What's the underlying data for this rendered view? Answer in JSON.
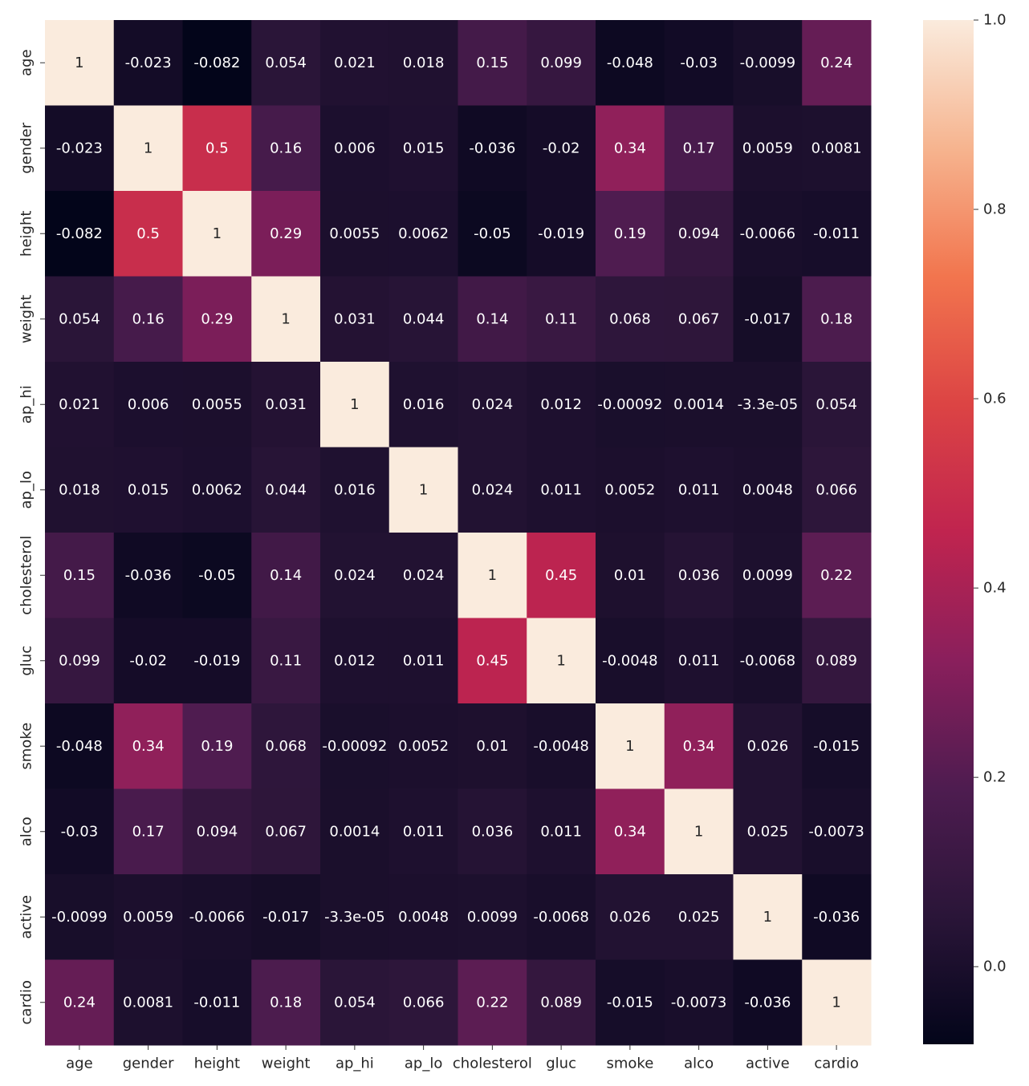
{
  "chart_data": {
    "type": "heatmap",
    "x_categories": [
      "age",
      "gender",
      "height",
      "weight",
      "ap_hi",
      "ap_lo",
      "cholesterol",
      "gluc",
      "smoke",
      "alco",
      "active",
      "cardio"
    ],
    "y_categories": [
      "age",
      "gender",
      "height",
      "weight",
      "ap_hi",
      "ap_lo",
      "cholesterol",
      "gluc",
      "smoke",
      "alco",
      "active",
      "cardio"
    ],
    "values": [
      [
        1,
        -0.023,
        -0.082,
        0.054,
        0.021,
        0.018,
        0.15,
        0.099,
        -0.048,
        -0.03,
        -0.0099,
        0.24
      ],
      [
        -0.023,
        1,
        0.5,
        0.16,
        0.006,
        0.015,
        -0.036,
        -0.02,
        0.34,
        0.17,
        0.0059,
        0.0081
      ],
      [
        -0.082,
        0.5,
        1,
        0.29,
        0.0055,
        0.0062,
        -0.05,
        -0.019,
        0.19,
        0.094,
        -0.0066,
        -0.011
      ],
      [
        0.054,
        0.16,
        0.29,
        1,
        0.031,
        0.044,
        0.14,
        0.11,
        0.068,
        0.067,
        -0.017,
        0.18
      ],
      [
        0.021,
        0.006,
        0.0055,
        0.031,
        1,
        0.016,
        0.024,
        0.012,
        -0.00092,
        0.0014,
        -3.3e-05,
        0.054
      ],
      [
        0.018,
        0.015,
        0.0062,
        0.044,
        0.016,
        1,
        0.024,
        0.011,
        0.0052,
        0.011,
        0.0048,
        0.066
      ],
      [
        0.15,
        -0.036,
        -0.05,
        0.14,
        0.024,
        0.024,
        1,
        0.45,
        0.01,
        0.036,
        0.0099,
        0.22
      ],
      [
        0.099,
        -0.02,
        -0.019,
        0.11,
        0.012,
        0.011,
        0.45,
        1,
        -0.0048,
        0.011,
        -0.0068,
        0.089
      ],
      [
        -0.048,
        0.34,
        0.19,
        0.068,
        -0.00092,
        0.0052,
        0.01,
        -0.0048,
        1,
        0.34,
        0.026,
        -0.015
      ],
      [
        -0.03,
        0.17,
        0.094,
        0.067,
        0.0014,
        0.011,
        0.036,
        0.011,
        0.34,
        1,
        0.025,
        -0.0073
      ],
      [
        -0.0099,
        0.0059,
        -0.0066,
        -0.017,
        -3.3e-05,
        0.0048,
        0.0099,
        -0.0068,
        0.026,
        0.025,
        1,
        -0.036
      ],
      [
        0.24,
        0.0081,
        -0.011,
        0.18,
        0.054,
        0.066,
        0.22,
        0.089,
        -0.015,
        -0.0073,
        -0.036,
        1
      ]
    ],
    "value_labels": [
      [
        null,
        null,
        null,
        null,
        null,
        null,
        null,
        null,
        null,
        null,
        null,
        null
      ],
      [
        null,
        null,
        null,
        null,
        null,
        null,
        null,
        null,
        null,
        null,
        null,
        null
      ],
      [
        null,
        null,
        null,
        null,
        null,
        null,
        null,
        null,
        null,
        null,
        null,
        null
      ],
      [
        null,
        null,
        null,
        null,
        null,
        null,
        null,
        null,
        null,
        null,
        null,
        null
      ],
      [
        null,
        null,
        null,
        null,
        null,
        null,
        null,
        null,
        null,
        null,
        "-3.3e-05",
        null
      ],
      [
        null,
        null,
        null,
        null,
        null,
        null,
        null,
        null,
        null,
        null,
        null,
        null
      ],
      [
        null,
        null,
        null,
        null,
        null,
        null,
        null,
        null,
        null,
        null,
        null,
        null
      ],
      [
        null,
        null,
        null,
        null,
        null,
        null,
        null,
        null,
        null,
        null,
        null,
        null
      ],
      [
        null,
        null,
        null,
        null,
        null,
        null,
        null,
        null,
        null,
        null,
        null,
        null
      ],
      [
        null,
        null,
        null,
        null,
        null,
        null,
        null,
        null,
        null,
        null,
        null,
        null
      ],
      [
        null,
        null,
        null,
        null,
        "-3.3e-05",
        null,
        null,
        null,
        null,
        null,
        null,
        null
      ],
      [
        null,
        null,
        null,
        null,
        null,
        null,
        null,
        null,
        null,
        null,
        null,
        null
      ]
    ],
    "zlim": [
      -0.082,
      1
    ],
    "zticks": [
      {
        "value": 0,
        "label": "0.0"
      },
      0.2,
      0.4,
      0.6,
      0.8,
      {
        "value": 1,
        "label": "1.0"
      }
    ],
    "colormap": [
      "#03051A",
      "#2A1538",
      "#4E1C50",
      "#8A1F5C",
      "#C0244F",
      "#DC4444",
      "#F2754E",
      "#F6B48F",
      "#FAEBDD"
    ]
  }
}
